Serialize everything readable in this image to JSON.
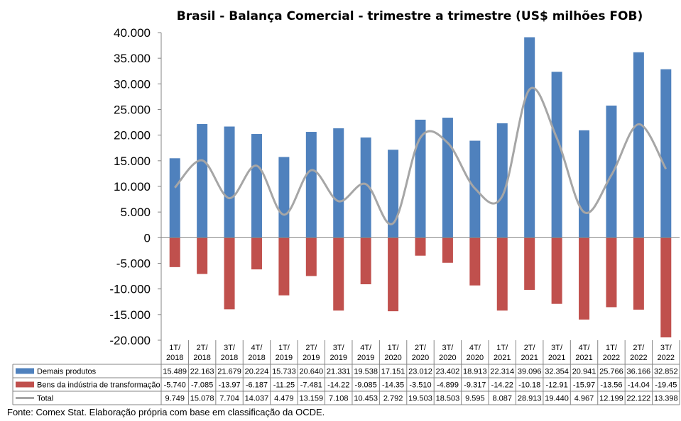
{
  "chart_data": {
    "type": "bar",
    "title": "Brasil - Balança Comercial - trimestre a trimestre (US$ milhões FOB)",
    "xlabel": "",
    "ylabel": "",
    "ylim": [
      -20000,
      40000
    ],
    "yticks": [
      "40.000",
      "35.000",
      "30.000",
      "25.000",
      "20.000",
      "15.000",
      "10.000",
      "5.000",
      "0",
      "-5.000",
      "-10.000",
      "-15.000",
      "-20.000"
    ],
    "ytick_values": [
      40000,
      35000,
      30000,
      25000,
      20000,
      15000,
      10000,
      5000,
      0,
      -5000,
      -10000,
      -15000,
      -20000
    ],
    "categories": [
      [
        "1T/",
        "2018"
      ],
      [
        "2T/",
        "2018"
      ],
      [
        "3T/",
        "2018"
      ],
      [
        "4T/",
        "2018"
      ],
      [
        "1T/",
        "2019"
      ],
      [
        "2T/",
        "2019"
      ],
      [
        "3T/",
        "2019"
      ],
      [
        "4T/",
        "2019"
      ],
      [
        "1T/",
        "2020"
      ],
      [
        "2T/",
        "2020"
      ],
      [
        "3T/",
        "2020"
      ],
      [
        "4T/",
        "2020"
      ],
      [
        "1T/",
        "2021"
      ],
      [
        "2T/",
        "2021"
      ],
      [
        "3T/",
        "2021"
      ],
      [
        "4T/",
        "2021"
      ],
      [
        "1T/",
        "2022"
      ],
      [
        "2T/",
        "2022"
      ],
      [
        "3T/",
        "2022"
      ]
    ],
    "series": [
      {
        "name": "Demais produtos",
        "kind": "bar",
        "color": "#4F81BD",
        "values": [
          15489,
          22163,
          21679,
          20224,
          15733,
          20640,
          21331,
          19538,
          17151,
          23012,
          23402,
          18913,
          22314,
          39096,
          32354,
          20941,
          25766,
          36166,
          32852
        ],
        "labels": [
          "15.489",
          "22.163",
          "21.679",
          "20.224",
          "15.733",
          "20.640",
          "21.331",
          "19.538",
          "17.151",
          "23.012",
          "23.402",
          "18.913",
          "22.314",
          "39.096",
          "32.354",
          "20.941",
          "25.766",
          "36.166",
          "32.852"
        ]
      },
      {
        "name": "Bens da indústria de transformação",
        "kind": "bar",
        "color": "#C0504D",
        "values": [
          -5740,
          -7085,
          -13970,
          -6187,
          -11250,
          -7481,
          -14220,
          -9085,
          -14350,
          -3510,
          -4899,
          -9317,
          -14220,
          -10180,
          -12910,
          -15970,
          -13560,
          -14040,
          -19450
        ],
        "labels": [
          "-5.740",
          "-7.085",
          "-13.97",
          "-6.187",
          "-11.25",
          "-7.481",
          "-14.22",
          "-9.085",
          "-14.35",
          "-3.510",
          "-4.899",
          "-9.317",
          "-14.22",
          "-10.18",
          "-12.91",
          "-15.97",
          "-13.56",
          "-14.04",
          "-19.45"
        ]
      },
      {
        "name": "Total",
        "kind": "line",
        "color": "#A6A6A6",
        "values": [
          9749,
          15078,
          7704,
          14037,
          4479,
          13159,
          7108,
          10453,
          2792,
          19503,
          18503,
          9595,
          8087,
          28913,
          19440,
          4967,
          12199,
          22122,
          13398
        ],
        "labels": [
          "9.749",
          "15.078",
          "7.704",
          "14.037",
          "4.479",
          "13.159",
          "7.108",
          "10.453",
          "2.792",
          "19.503",
          "18.503",
          "9.595",
          "8.087",
          "28.913",
          "19.440",
          "4.967",
          "12.199",
          "22.122",
          "13.398"
        ]
      }
    ],
    "grid": false,
    "legend": "data-table"
  },
  "source_note": "Fonte: Comex Stat. Elaboração própria com base em classificação da OCDE."
}
